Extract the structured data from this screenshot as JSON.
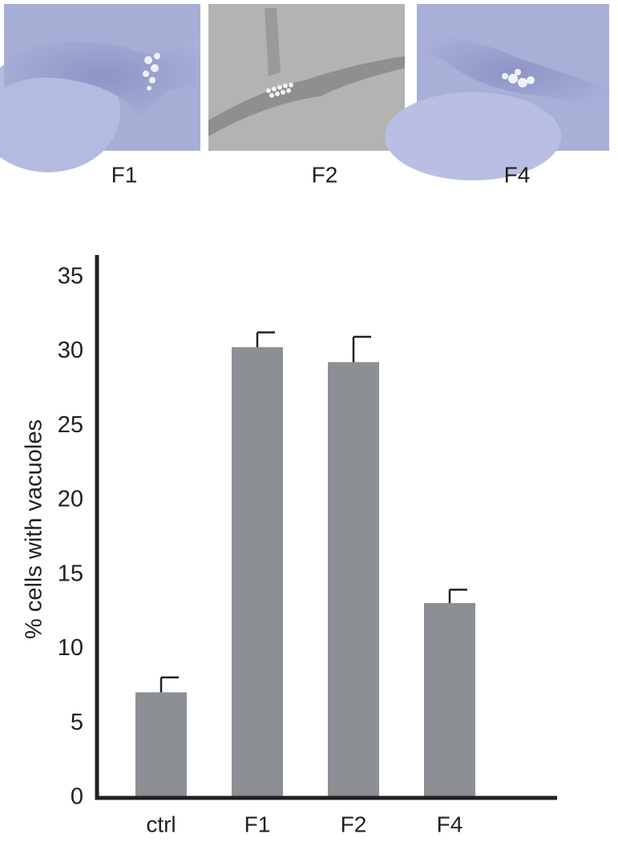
{
  "images": {
    "labels": [
      "F1",
      "F2",
      "F4"
    ]
  },
  "chart_data": {
    "type": "bar",
    "y_label": "% cells with vacuoles",
    "categories": [
      "ctrl",
      "F1",
      "F2",
      "F4"
    ],
    "values": [
      7.1,
      30.3,
      29.3,
      13.1
    ],
    "errors": [
      1.0,
      1.0,
      1.7,
      0.9
    ],
    "color": "#8c8f93",
    "ylim": [
      0,
      36.5
    ],
    "yticks": [
      0,
      5,
      10,
      15,
      20,
      25,
      30,
      35
    ],
    "grid": false
  }
}
